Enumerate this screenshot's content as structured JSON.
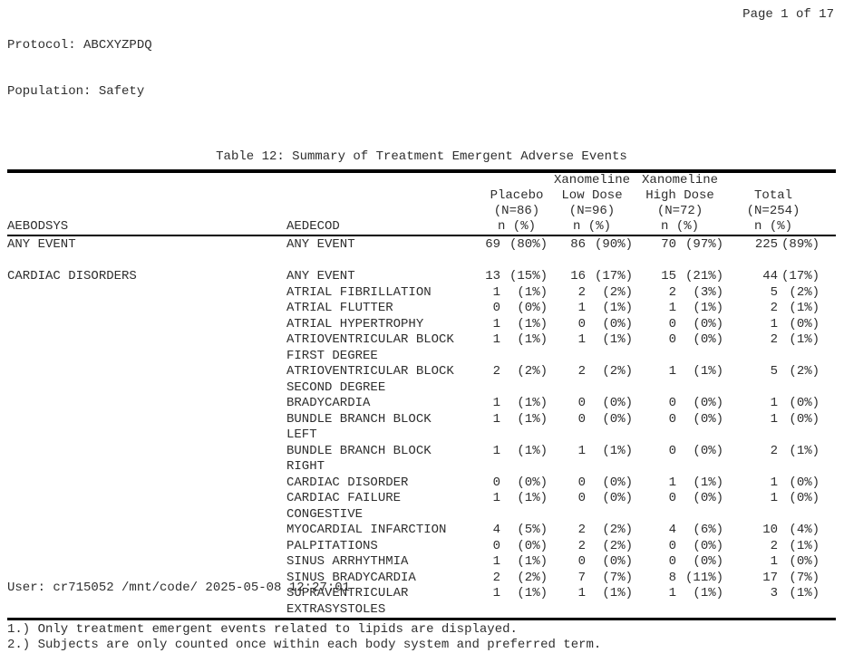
{
  "page": {
    "protocol_label": "Protocol: ABCXYZPDQ",
    "population_label": "Population: Safety",
    "page_label": "Page 1 of 17",
    "title": "Table 12: Summary of Treatment Emergent Adverse Events"
  },
  "table": {
    "col_headers": {
      "bodsys": "AEBODSYS",
      "term": "AEDECOD",
      "n_pct": "n (%)",
      "groups": [
        {
          "drug": "",
          "dose": "Placebo",
          "n": "(N=86)"
        },
        {
          "drug": "Xanomeline",
          "dose": "Low Dose",
          "n": "(N=96)"
        },
        {
          "drug": "Xanomeline",
          "dose": "High Dose",
          "n": "(N=72)"
        },
        {
          "drug": "",
          "dose": "Total",
          "n": "(N=254)"
        }
      ]
    },
    "rows": [
      {
        "bodsys": "ANY EVENT",
        "term": "ANY EVENT",
        "cells": [
          "69",
          "(80%)",
          "86",
          "(90%)",
          "70",
          "(97%)",
          "225",
          "(89%)"
        ]
      },
      {
        "spacer": true
      },
      {
        "bodsys": "CARDIAC DISORDERS",
        "term": "ANY EVENT",
        "cells": [
          "13",
          "(15%)",
          "16",
          "(17%)",
          "15",
          "(21%)",
          "44",
          "(17%)"
        ]
      },
      {
        "bodsys": "",
        "term": "ATRIAL FIBRILLATION",
        "cells": [
          "1",
          "(1%)",
          "2",
          "(2%)",
          "2",
          "(3%)",
          "5",
          "(2%)"
        ]
      },
      {
        "bodsys": "",
        "term": "ATRIAL FLUTTER",
        "cells": [
          "0",
          "(0%)",
          "1",
          "(1%)",
          "1",
          "(1%)",
          "2",
          "(1%)"
        ]
      },
      {
        "bodsys": "",
        "term": "ATRIAL HYPERTROPHY",
        "cells": [
          "1",
          "(1%)",
          "0",
          "(0%)",
          "0",
          "(0%)",
          "1",
          "(0%)"
        ]
      },
      {
        "bodsys": "",
        "term": "ATRIOVENTRICULAR BLOCK\nFIRST DEGREE",
        "cells": [
          "1",
          "(1%)",
          "1",
          "(1%)",
          "0",
          "(0%)",
          "2",
          "(1%)"
        ]
      },
      {
        "bodsys": "",
        "term": "ATRIOVENTRICULAR BLOCK\nSECOND DEGREE",
        "cells": [
          "2",
          "(2%)",
          "2",
          "(2%)",
          "1",
          "(1%)",
          "5",
          "(2%)"
        ]
      },
      {
        "bodsys": "",
        "term": "BRADYCARDIA",
        "cells": [
          "1",
          "(1%)",
          "0",
          "(0%)",
          "0",
          "(0%)",
          "1",
          "(0%)"
        ]
      },
      {
        "bodsys": "",
        "term": "BUNDLE BRANCH BLOCK\nLEFT",
        "cells": [
          "1",
          "(1%)",
          "0",
          "(0%)",
          "0",
          "(0%)",
          "1",
          "(0%)"
        ]
      },
      {
        "bodsys": "",
        "term": "BUNDLE BRANCH BLOCK\nRIGHT",
        "cells": [
          "1",
          "(1%)",
          "1",
          "(1%)",
          "0",
          "(0%)",
          "2",
          "(1%)"
        ]
      },
      {
        "bodsys": "",
        "term": "CARDIAC DISORDER",
        "cells": [
          "0",
          "(0%)",
          "0",
          "(0%)",
          "1",
          "(1%)",
          "1",
          "(0%)"
        ]
      },
      {
        "bodsys": "",
        "term": "CARDIAC FAILURE\nCONGESTIVE",
        "cells": [
          "1",
          "(1%)",
          "0",
          "(0%)",
          "0",
          "(0%)",
          "1",
          "(0%)"
        ]
      },
      {
        "bodsys": "",
        "term": "MYOCARDIAL INFARCTION",
        "cells": [
          "4",
          "(5%)",
          "2",
          "(2%)",
          "4",
          "(6%)",
          "10",
          "(4%)"
        ]
      },
      {
        "bodsys": "",
        "term": "PALPITATIONS",
        "cells": [
          "0",
          "(0%)",
          "2",
          "(2%)",
          "0",
          "(0%)",
          "2",
          "(1%)"
        ]
      },
      {
        "bodsys": "",
        "term": "SINUS ARRHYTHMIA",
        "cells": [
          "1",
          "(1%)",
          "0",
          "(0%)",
          "0",
          "(0%)",
          "1",
          "(0%)"
        ]
      },
      {
        "bodsys": "",
        "term": "SINUS BRADYCARDIA",
        "cells": [
          "2",
          "(2%)",
          "7",
          "(7%)",
          "8",
          "(11%)",
          "17",
          "(7%)"
        ]
      },
      {
        "bodsys": "",
        "term": "SUPRAVENTRICULAR\nEXTRASYSTOLES",
        "cells": [
          "1",
          "(1%)",
          "1",
          "(1%)",
          "1",
          "(1%)",
          "3",
          "(1%)"
        ]
      }
    ]
  },
  "footnotes": [
    "1.) Only treatment emergent events related to lipids are displayed.",
    "2.) Subjects are only counted once within each body system and preferred term."
  ],
  "footer": {
    "user_line": "User: cr715052 /mnt/code/ 2025-05-08 12:27:01"
  }
}
